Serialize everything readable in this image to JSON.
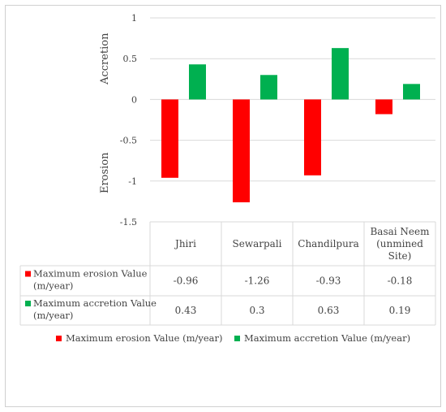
{
  "chart_data": {
    "type": "bar",
    "categories": [
      "Jhiri",
      "Sewarpali",
      "Chandilpura",
      "Basai Neem (unmined Site)"
    ],
    "category_lines": [
      [
        "Jhiri"
      ],
      [
        "Sewarpali"
      ],
      [
        "Chandilpura"
      ],
      [
        "Basai Neem",
        "(unmined",
        "Site)"
      ]
    ],
    "series": [
      {
        "name": "Maximum erosion Value (m/year)",
        "name_lines": [
          "Maximum erosion Value",
          "(m/year)"
        ],
        "color": "#ff0000",
        "values": [
          -0.96,
          -1.26,
          -0.93,
          -0.18
        ],
        "labels": [
          "-0.96",
          "-1.26",
          "-0.93",
          "-0.18"
        ]
      },
      {
        "name": "Maximum accretion Value (m/year)",
        "name_lines": [
          "Maximum accretion Value",
          "(m/year)"
        ],
        "color": "#00b050",
        "values": [
          0.43,
          0.3,
          0.63,
          0.19
        ],
        "labels": [
          "0.43",
          "0.3",
          "0.63",
          "0.19"
        ]
      }
    ],
    "ylim": [
      -1.5,
      1
    ],
    "yticks": [
      1,
      0.5,
      0,
      -0.5,
      -1,
      -1.5
    ],
    "ytick_labels": [
      "1",
      "0.5",
      "0",
      "-0.5",
      "-1",
      "-1.5"
    ],
    "ylabel_top": "Accretion",
    "ylabel_bottom": "Erosion",
    "grid": true,
    "legend": "bottom",
    "data_table": true
  }
}
